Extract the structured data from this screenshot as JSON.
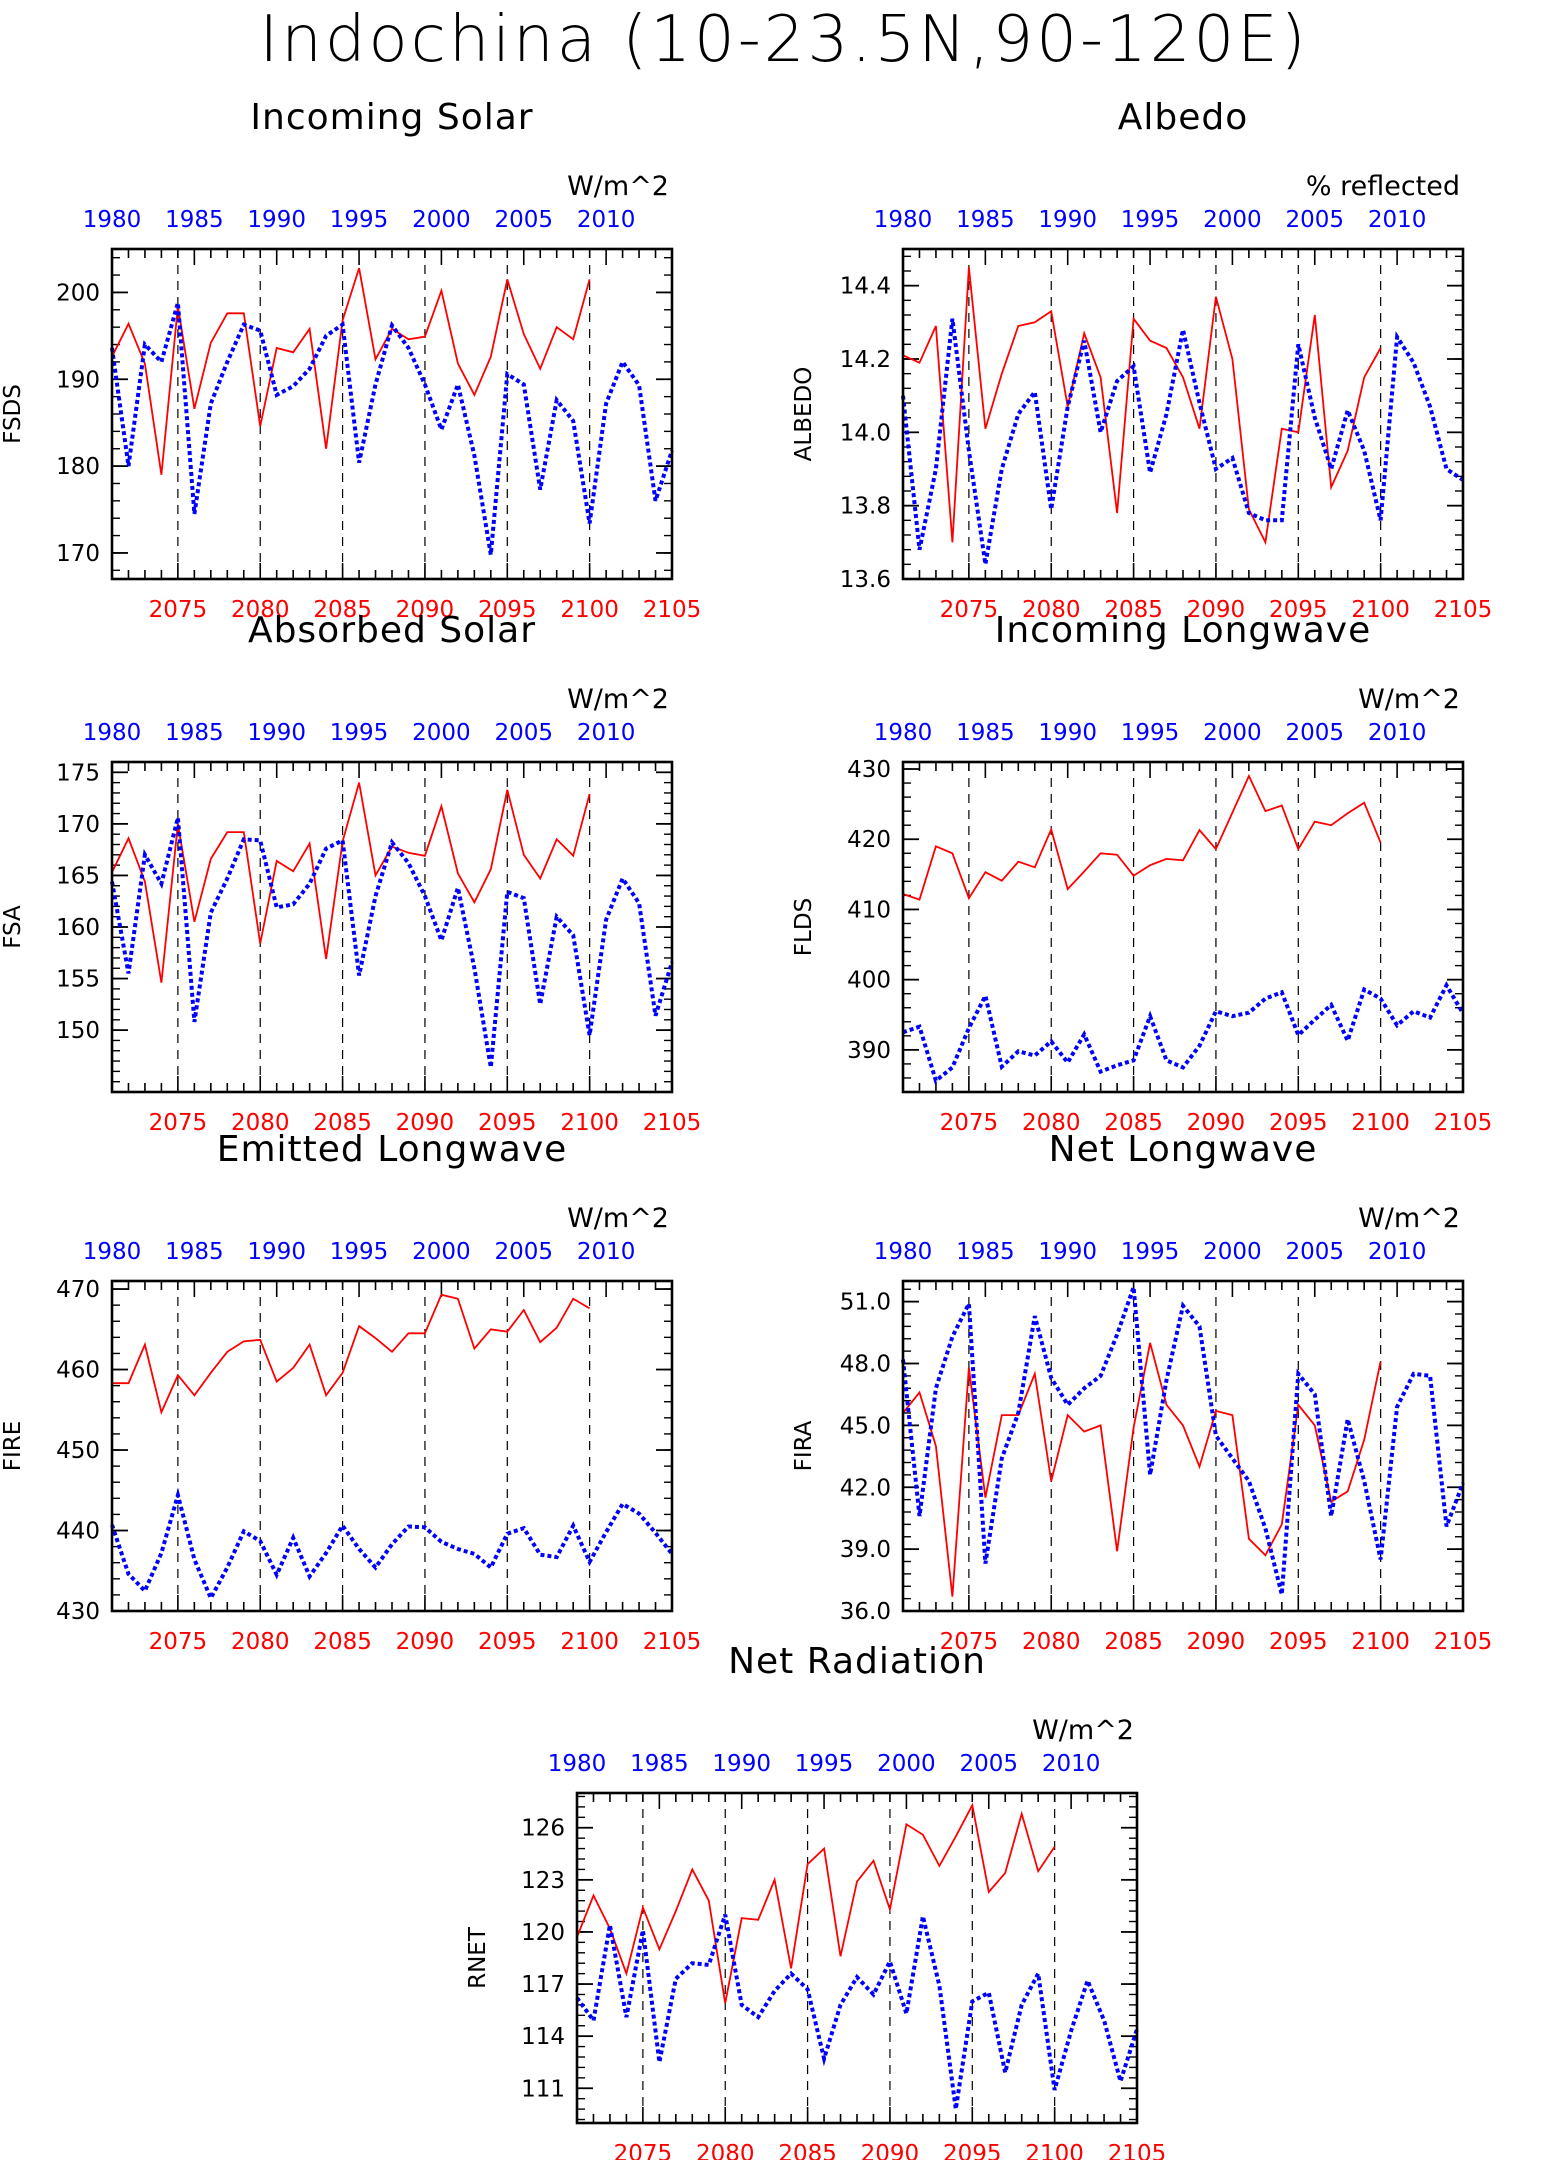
{
  "page_title": "Indochina (10-23.5N,90-120E)",
  "colors": {
    "red_series": "#ff0000",
    "blue_series": "#0000ff",
    "axis": "#000000"
  },
  "chart_data": [
    {
      "type": "line",
      "title": "Incoming Solar",
      "ylabel": "FSDS",
      "units": "W/m^2",
      "ylim": [
        167,
        205
      ],
      "yticks": [
        170,
        180,
        190,
        200
      ],
      "ytick_labels": [
        "170",
        "180",
        "190",
        "200"
      ],
      "bottom_axis": {
        "range": [
          2071,
          2105
        ],
        "ticks": [
          2075,
          2080,
          2085,
          2090,
          2095,
          2100,
          2105
        ]
      },
      "top_axis": {
        "range": [
          1980,
          2014
        ],
        "ticks": [
          1980,
          1985,
          1990,
          1995,
          2000,
          2005,
          2010
        ]
      },
      "vlines": [
        2075,
        2080,
        2085,
        2090,
        2095,
        2100
      ],
      "series": [
        {
          "axis": "bottom",
          "style": "solid",
          "color": "#ff0000",
          "x0": 2071,
          "values": [
            192.6,
            196.4,
            191.8,
            179,
            198.4,
            186.6,
            194.2,
            197.6,
            197.6,
            184.6,
            193.6,
            193.1,
            195.8,
            182,
            196.8,
            202.8,
            192.3,
            195.8,
            194.6,
            194.9,
            200.2,
            191.8,
            188.2,
            192.6,
            201.5,
            195.2,
            191.2,
            196,
            194.6,
            201.5
          ]
        },
        {
          "axis": "top",
          "style": "dotted",
          "color": "#0000ff",
          "x0": 1980,
          "values": [
            193.6,
            180,
            194,
            192,
            198.8,
            174.5,
            187.2,
            192,
            196.3,
            195.6,
            188.2,
            189.2,
            191.2,
            195,
            196.3,
            180.4,
            189.4,
            196.2,
            193.6,
            189.4,
            184.2,
            189.4,
            181.2,
            169.8,
            190.6,
            189.4,
            177.3,
            187.6,
            185.2,
            173.4,
            187.2,
            192,
            189.3,
            176,
            181.8
          ]
        }
      ]
    },
    {
      "type": "line",
      "title": "Albedo",
      "ylabel": "ALBEDO",
      "units": "% reflected",
      "ylim": [
        13.6,
        14.5
      ],
      "yticks": [
        13.6,
        13.8,
        14.0,
        14.2,
        14.4
      ],
      "ytick_labels": [
        "13.6",
        "13.8",
        "14.0",
        "14.2",
        "14.4"
      ],
      "bottom_axis": {
        "range": [
          2071,
          2105
        ],
        "ticks": [
          2075,
          2080,
          2085,
          2090,
          2095,
          2100,
          2105
        ]
      },
      "top_axis": {
        "range": [
          1980,
          2014
        ],
        "ticks": [
          1980,
          1985,
          1990,
          1995,
          2000,
          2005,
          2010
        ]
      },
      "vlines": [
        2075,
        2080,
        2085,
        2090,
        2095,
        2100
      ],
      "series": [
        {
          "axis": "bottom",
          "style": "solid",
          "color": "#ff0000",
          "x0": 2071,
          "values": [
            14.21,
            14.19,
            14.29,
            13.7,
            14.45,
            14.01,
            14.16,
            14.29,
            14.3,
            14.33,
            14.07,
            14.27,
            14.15,
            13.78,
            14.31,
            14.25,
            14.23,
            14.15,
            14.01,
            14.37,
            14.2,
            13.79,
            13.7,
            14.01,
            14,
            14.32,
            13.85,
            13.95,
            14.15,
            14.23
          ]
        },
        {
          "axis": "top",
          "style": "dotted",
          "color": "#0000ff",
          "x0": 1980,
          "values": [
            14.1,
            13.68,
            13.9,
            14.31,
            13.95,
            13.64,
            13.9,
            14.05,
            14.11,
            13.79,
            14.07,
            14.25,
            14,
            14.14,
            14.18,
            13.89,
            14.05,
            14.28,
            14.08,
            13.9,
            13.93,
            13.78,
            13.76,
            13.76,
            14.24,
            14.04,
            13.9,
            14.06,
            13.95,
            13.76,
            14.26,
            14.19,
            14.07,
            13.9,
            13.87
          ]
        }
      ]
    },
    {
      "type": "line",
      "title": "Absorbed Solar",
      "ylabel": "FSA",
      "units": "W/m^2",
      "ylim": [
        144,
        176
      ],
      "yticks": [
        150,
        155,
        160,
        165,
        170,
        175
      ],
      "ytick_labels": [
        "150",
        "155",
        "160",
        "165",
        "170",
        "175"
      ],
      "bottom_axis": {
        "range": [
          2071,
          2105
        ],
        "ticks": [
          2075,
          2080,
          2085,
          2090,
          2095,
          2100,
          2105
        ]
      },
      "top_axis": {
        "range": [
          1980,
          2014
        ],
        "ticks": [
          1980,
          1985,
          1990,
          1995,
          2000,
          2005,
          2010
        ]
      },
      "vlines": [
        2075,
        2080,
        2085,
        2090,
        2095,
        2100
      ],
      "series": [
        {
          "axis": "bottom",
          "style": "solid",
          "color": "#ff0000",
          "x0": 2071,
          "values": [
            165.3,
            168.6,
            164.4,
            154.6,
            170,
            160.5,
            166.6,
            169.2,
            169.2,
            158.4,
            166.4,
            165.4,
            168.1,
            156.9,
            168.3,
            174,
            165,
            167.8,
            167.2,
            166.9,
            171.7,
            165.2,
            162.4,
            165.6,
            173.3,
            167,
            164.7,
            168.5,
            166.9,
            172.9
          ]
        },
        {
          "axis": "top",
          "style": "dotted",
          "color": "#0000ff",
          "x0": 1980,
          "values": [
            164.4,
            155.5,
            167,
            164.2,
            170.6,
            150.8,
            161.4,
            164.7,
            168.5,
            168.4,
            161.9,
            162.2,
            164.2,
            167.6,
            168.4,
            155.3,
            163,
            168.2,
            166.2,
            163,
            158.7,
            163.8,
            156,
            146.4,
            163.4,
            162.8,
            152.5,
            161,
            159.2,
            149.5,
            160.7,
            164.7,
            162.3,
            151.4,
            156.6
          ]
        }
      ]
    },
    {
      "type": "line",
      "title": "Incoming Longwave",
      "ylabel": "FLDS",
      "units": "W/m^2",
      "ylim": [
        384,
        431
      ],
      "yticks": [
        390,
        400,
        410,
        420,
        430
      ],
      "ytick_labels": [
        "390",
        "400",
        "410",
        "420",
        "430"
      ],
      "bottom_axis": {
        "range": [
          2071,
          2105
        ],
        "ticks": [
          2075,
          2080,
          2085,
          2090,
          2095,
          2100,
          2105
        ]
      },
      "top_axis": {
        "range": [
          1980,
          2014
        ],
        "ticks": [
          1980,
          1985,
          1990,
          1995,
          2000,
          2005,
          2010
        ]
      },
      "vlines": [
        2075,
        2080,
        2085,
        2090,
        2095,
        2100
      ],
      "series": [
        {
          "axis": "bottom",
          "style": "solid",
          "color": "#ff0000",
          "x0": 2071,
          "values": [
            412.2,
            411.4,
            419,
            418,
            411.6,
            415.3,
            414.1,
            416.8,
            416,
            421.4,
            412.9,
            415.4,
            418,
            417.8,
            414.8,
            416.3,
            417.2,
            417,
            421.3,
            418.6,
            423.8,
            429,
            424,
            424.8,
            418.6,
            422.5,
            422,
            423.7,
            425.2,
            419.5
          ]
        },
        {
          "axis": "top",
          "style": "dotted",
          "color": "#0000ff",
          "x0": 1980,
          "values": [
            392.5,
            393.3,
            385.6,
            387.5,
            393.1,
            397.7,
            387.6,
            389.8,
            389.2,
            391.2,
            388.2,
            392.2,
            386.9,
            387.8,
            388.5,
            394.8,
            388.5,
            387.5,
            390.6,
            395.5,
            394.8,
            395.3,
            397.3,
            398.2,
            392.1,
            394.3,
            396.4,
            391.3,
            398.6,
            397.3,
            393.5,
            395.5,
            394.6,
            399.2,
            395.2
          ]
        }
      ]
    },
    {
      "type": "line",
      "title": "Emitted Longwave",
      "ylabel": "FIRE",
      "units": "W/m^2",
      "ylim": [
        430,
        471
      ],
      "yticks": [
        430,
        440,
        450,
        460,
        470
      ],
      "ytick_labels": [
        "430",
        "440",
        "450",
        "460",
        "470"
      ],
      "bottom_axis": {
        "range": [
          2071,
          2105
        ],
        "ticks": [
          2075,
          2080,
          2085,
          2090,
          2095,
          2100,
          2105
        ]
      },
      "top_axis": {
        "range": [
          1980,
          2014
        ],
        "ticks": [
          1980,
          1985,
          1990,
          1995,
          2000,
          2005,
          2010
        ]
      },
      "vlines": [
        2075,
        2080,
        2085,
        2090,
        2095,
        2100
      ],
      "series": [
        {
          "axis": "bottom",
          "style": "solid",
          "color": "#ff0000",
          "x0": 2071,
          "values": [
            458.3,
            458.3,
            463.1,
            454.7,
            459.3,
            456.8,
            459.6,
            462.2,
            463.5,
            463.7,
            458.5,
            460.2,
            463.1,
            456.8,
            459.6,
            465.4,
            463.9,
            462.2,
            464.5,
            464.5,
            469.3,
            468.8,
            462.6,
            465,
            464.7,
            467.4,
            463.4,
            465.2,
            468.8,
            467.6
          ]
        },
        {
          "axis": "top",
          "style": "dotted",
          "color": "#0000ff",
          "x0": 1980,
          "values": [
            440.7,
            434.6,
            432.5,
            437.2,
            444.4,
            436.4,
            431.6,
            435.4,
            439.9,
            438.7,
            434.5,
            439.1,
            434.3,
            437.2,
            440.6,
            437.7,
            435.4,
            438.3,
            440.5,
            440.4,
            438.6,
            437.7,
            437.1,
            435.4,
            439.6,
            440.3,
            437,
            436.7,
            440.6,
            436.1,
            439.8,
            443.3,
            442.1,
            439.7,
            437.1
          ]
        }
      ]
    },
    {
      "type": "line",
      "title": "Net Longwave",
      "ylabel": "FIRA",
      "units": "W/m^2",
      "ylim": [
        36,
        52
      ],
      "yticks": [
        36.0,
        39.0,
        42.0,
        45.0,
        48.0,
        51.0
      ],
      "ytick_labels": [
        "36.0",
        "39.0",
        "42.0",
        "45.0",
        "48.0",
        "51.0"
      ],
      "bottom_axis": {
        "range": [
          2071,
          2105
        ],
        "ticks": [
          2075,
          2080,
          2085,
          2090,
          2095,
          2100,
          2105
        ]
      },
      "top_axis": {
        "range": [
          1980,
          2014
        ],
        "ticks": [
          1980,
          1985,
          1990,
          1995,
          2000,
          2005,
          2010
        ]
      },
      "vlines": [
        2075,
        2080,
        2085,
        2090,
        2095,
        2100
      ],
      "series": [
        {
          "axis": "bottom",
          "style": "solid",
          "color": "#ff0000",
          "x0": 2071,
          "values": [
            45.6,
            46.6,
            44,
            36.7,
            47.8,
            41.5,
            45.5,
            45.5,
            47.5,
            42.3,
            45.5,
            44.7,
            45,
            38.9,
            44.9,
            49,
            46,
            45,
            43,
            45.7,
            45.5,
            39.5,
            38.7,
            40.2,
            46,
            45,
            41.3,
            41.8,
            44.3,
            48.1
          ]
        },
        {
          "axis": "top",
          "style": "dotted",
          "color": "#0000ff",
          "x0": 1980,
          "values": [
            48.2,
            40.6,
            46.8,
            49.3,
            50.9,
            38.3,
            43.4,
            45.6,
            50.3,
            47.3,
            46,
            46.8,
            47.4,
            49.4,
            51.7,
            42.6,
            47.2,
            50.8,
            49.8,
            44.5,
            43.4,
            42.3,
            40,
            36.8,
            47.5,
            46.5,
            40.6,
            45.3,
            42.3,
            38.5,
            45.9,
            47.5,
            47.4,
            40.1,
            42.2
          ]
        }
      ]
    },
    {
      "type": "line",
      "title": "Net Radiation",
      "ylabel": "RNET",
      "units": "W/m^2",
      "ylim": [
        109,
        128
      ],
      "yticks": [
        111,
        114,
        117,
        120,
        123,
        126
      ],
      "ytick_labels": [
        "111",
        "114",
        "117",
        "120",
        "123",
        "126"
      ],
      "bottom_axis": {
        "range": [
          2071,
          2105
        ],
        "ticks": [
          2075,
          2080,
          2085,
          2090,
          2095,
          2100,
          2105
        ]
      },
      "top_axis": {
        "range": [
          1980,
          2014
        ],
        "ticks": [
          1980,
          1985,
          1990,
          1995,
          2000,
          2005,
          2010
        ]
      },
      "vlines": [
        2075,
        2080,
        2085,
        2090,
        2095,
        2100
      ],
      "series": [
        {
          "axis": "bottom",
          "style": "solid",
          "color": "#ff0000",
          "x0": 2071,
          "values": [
            119.7,
            122.1,
            120.2,
            117.6,
            121.4,
            119,
            121.2,
            123.6,
            121.8,
            115.9,
            120.8,
            120.7,
            123,
            117.9,
            123.9,
            124.8,
            118.6,
            122.9,
            124.1,
            121.3,
            126.2,
            125.6,
            123.8,
            125.5,
            127.3,
            122.3,
            123.4,
            126.8,
            123.5,
            124.9
          ]
        },
        {
          "axis": "top",
          "style": "dotted",
          "color": "#0000ff",
          "x0": 1980,
          "values": [
            116.2,
            114.9,
            120.4,
            115.1,
            120.1,
            112.5,
            117.3,
            118.2,
            118.1,
            121,
            115.8,
            115.1,
            116.6,
            117.6,
            116.7,
            112.7,
            115.8,
            117.4,
            116.4,
            118.3,
            115.3,
            120.9,
            116.9,
            109.8,
            116,
            116.5,
            111.9,
            115.8,
            117.6,
            110.9,
            114.3,
            117.2,
            114.9,
            111.4,
            114.4
          ]
        }
      ]
    }
  ]
}
